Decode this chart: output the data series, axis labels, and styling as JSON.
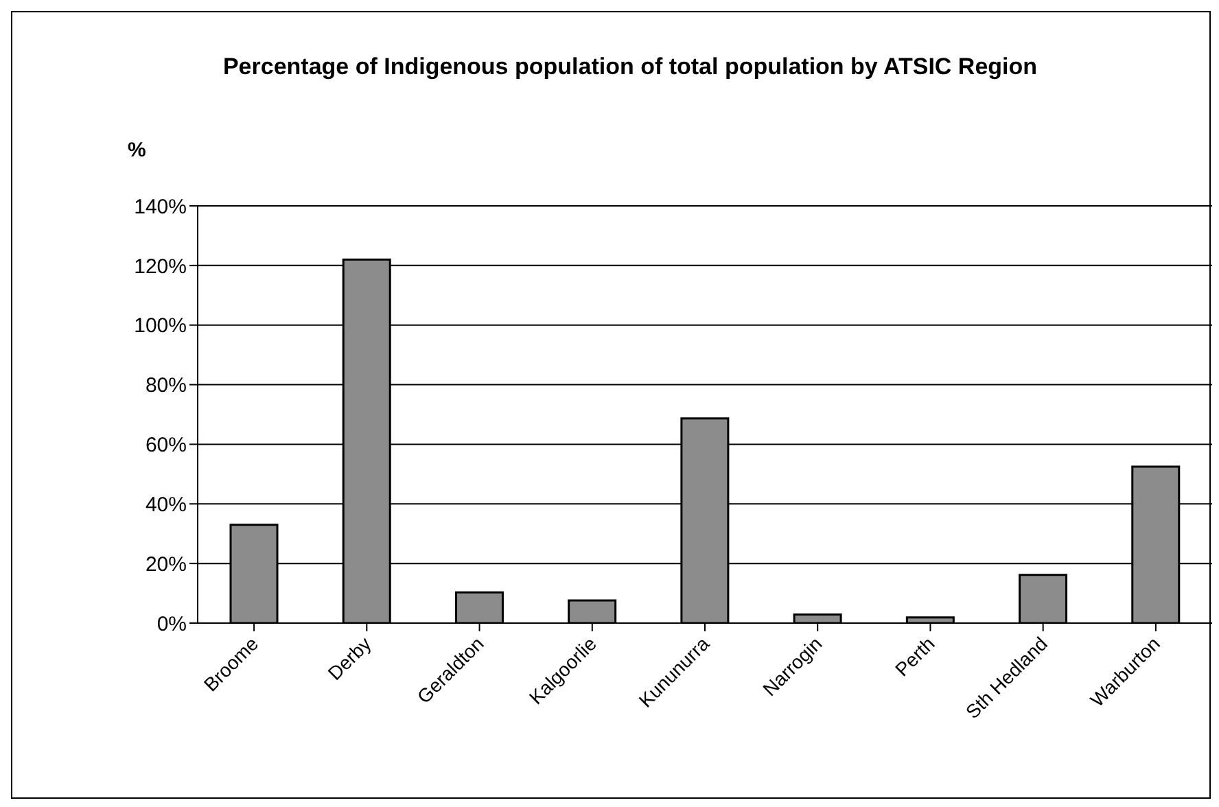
{
  "chart_data": {
    "type": "bar",
    "title": "Percentage of Indigenous population of total population by ATSIC Region",
    "ylabel": "%",
    "categories": [
      "Broome",
      "Derby",
      "Geraldton",
      "Kalgoorlie",
      "Kununurra",
      "Narrogin",
      "Perth",
      "Sth Hedland",
      "Warburton"
    ],
    "values": [
      33,
      122,
      10.3,
      7.6,
      68.7,
      2.9,
      1.9,
      16.2,
      52.5
    ],
    "color": "#8c8c8c",
    "ylim": [
      0,
      140
    ],
    "yticks": [
      {
        "value": 0,
        "label": "0%"
      },
      {
        "value": 20,
        "label": "20%"
      },
      {
        "value": 40,
        "label": "40%"
      },
      {
        "value": 60,
        "label": "60%"
      },
      {
        "value": 80,
        "label": "80%"
      },
      {
        "value": 100,
        "label": "100%"
      },
      {
        "value": 120,
        "label": "120%"
      },
      {
        "value": 140,
        "label": "140%"
      }
    ],
    "grid": "y",
    "legend": false
  }
}
